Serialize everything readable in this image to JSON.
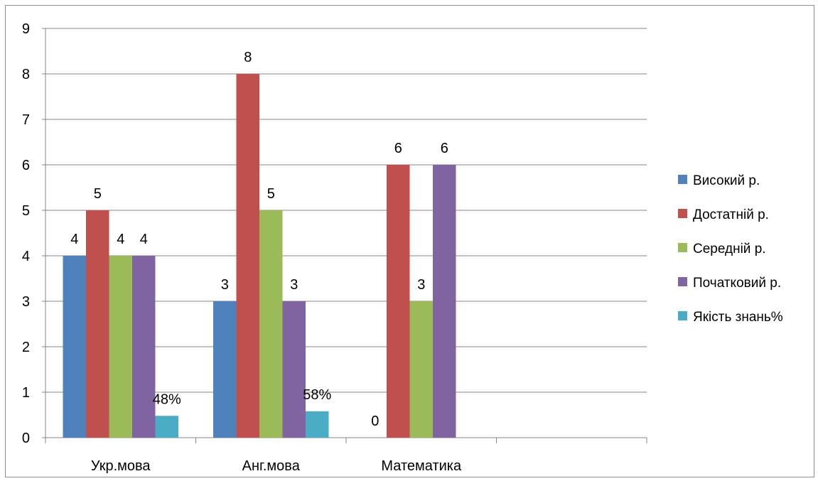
{
  "chart_data": {
    "type": "bar",
    "categories": [
      "Укр.мова",
      "Анг.мова",
      "Математика",
      ""
    ],
    "series": [
      {
        "name": "Високий р.",
        "color": "#4f81bd",
        "values": [
          4,
          3,
          0,
          null
        ],
        "labels": [
          "4",
          "3",
          "0",
          ""
        ]
      },
      {
        "name": "Достатній р.",
        "color": "#c0504d",
        "values": [
          5,
          8,
          6,
          null
        ],
        "labels": [
          "5",
          "8",
          "6",
          ""
        ]
      },
      {
        "name": "Середній р.",
        "color": "#9bbb59",
        "values": [
          4,
          5,
          3,
          null
        ],
        "labels": [
          "4",
          "5",
          "3",
          ""
        ]
      },
      {
        "name": "Початковий р.",
        "color": "#8064a2",
        "values": [
          4,
          3,
          6,
          null
        ],
        "labels": [
          "4",
          "3",
          "6",
          ""
        ]
      },
      {
        "name": "Якість знань%",
        "color": "#4bacc6",
        "values": [
          0.48,
          0.58,
          null,
          null
        ],
        "labels": [
          "48%",
          "58%",
          "",
          ""
        ]
      }
    ],
    "yticks": [
      "0",
      "1",
      "2",
      "3",
      "4",
      "5",
      "6",
      "7",
      "8",
      "9"
    ],
    "ylim": [
      0,
      9
    ],
    "grid": true,
    "legend_position": "right"
  }
}
